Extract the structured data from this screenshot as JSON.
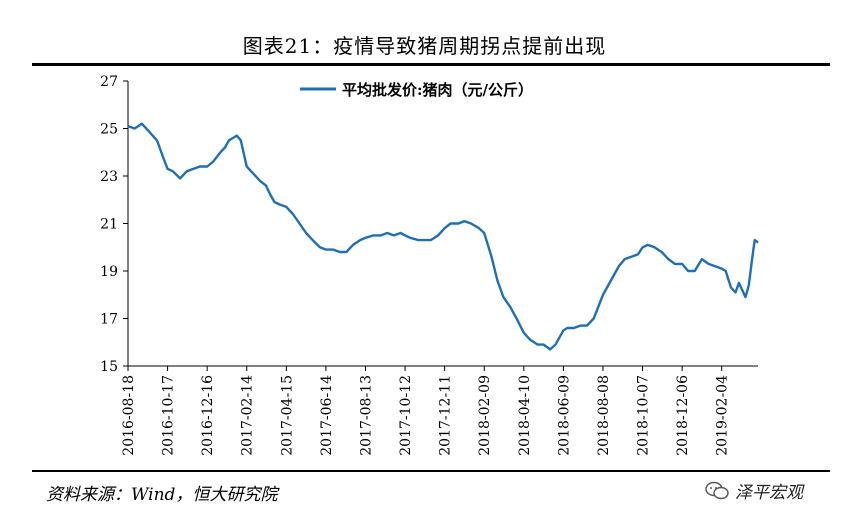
{
  "title": "图表21：疫情导致猪周期拐点提前出现",
  "source": "资料来源：Wind，恒大研究院",
  "watermark": "泽平宏观",
  "chart_data": {
    "type": "line",
    "legend": "平均批发价:猪肉（元/公斤）",
    "ylim": [
      15,
      27
    ],
    "yticks": [
      15,
      17,
      19,
      21,
      23,
      25,
      27
    ],
    "x_start": "2016-08-18",
    "x_end": "2019-03-31",
    "xticks": [
      "2016-08-18",
      "2016-10-17",
      "2016-12-16",
      "2017-02-14",
      "2017-04-15",
      "2017-06-14",
      "2017-08-13",
      "2017-10-12",
      "2017-12-11",
      "2018-02-09",
      "2018-04-10",
      "2018-06-09",
      "2018-08-08",
      "2018-10-07",
      "2018-12-06",
      "2019-02-04"
    ],
    "color": "#1f6fb5",
    "series": [
      {
        "name": "平均批发价:猪肉（元/公斤）",
        "x": [
          "2016-08-18",
          "2016-08-28",
          "2016-09-08",
          "2016-09-18",
          "2016-10-01",
          "2016-10-10",
          "2016-10-17",
          "2016-10-25",
          "2016-11-05",
          "2016-11-15",
          "2016-11-25",
          "2016-12-05",
          "2016-12-16",
          "2016-12-25",
          "2017-01-05",
          "2017-01-12",
          "2017-01-18",
          "2017-01-24",
          "2017-01-30",
          "2017-02-05",
          "2017-02-14",
          "2017-02-24",
          "2017-03-06",
          "2017-03-15",
          "2017-03-22",
          "2017-03-28",
          "2017-04-05",
          "2017-04-15",
          "2017-04-25",
          "2017-05-05",
          "2017-05-15",
          "2017-05-25",
          "2017-06-05",
          "2017-06-14",
          "2017-06-25",
          "2017-07-05",
          "2017-07-15",
          "2017-07-25",
          "2017-08-05",
          "2017-08-13",
          "2017-08-25",
          "2017-09-05",
          "2017-09-15",
          "2017-09-25",
          "2017-10-05",
          "2017-10-12",
          "2017-10-20",
          "2017-11-01",
          "2017-11-10",
          "2017-11-20",
          "2017-12-01",
          "2017-12-11",
          "2017-12-20",
          "2018-01-01",
          "2018-01-10",
          "2018-01-20",
          "2018-02-01",
          "2018-02-09",
          "2018-02-20",
          "2018-03-01",
          "2018-03-10",
          "2018-03-20",
          "2018-03-30",
          "2018-04-10",
          "2018-04-20",
          "2018-05-01",
          "2018-05-10",
          "2018-05-20",
          "2018-05-28",
          "2018-06-05",
          "2018-06-09",
          "2018-06-15",
          "2018-06-25",
          "2018-07-05",
          "2018-07-15",
          "2018-07-25",
          "2018-08-01",
          "2018-08-08",
          "2018-08-20",
          "2018-09-01",
          "2018-09-10",
          "2018-09-20",
          "2018-09-30",
          "2018-10-07",
          "2018-10-15",
          "2018-10-25",
          "2018-11-05",
          "2018-11-15",
          "2018-11-25",
          "2018-12-06",
          "2018-12-15",
          "2018-12-25",
          "2019-01-05",
          "2019-01-15",
          "2019-01-25",
          "2019-02-04",
          "2019-02-10",
          "2019-02-18",
          "2019-02-25",
          "2019-03-02",
          "2019-03-07",
          "2019-03-12",
          "2019-03-17",
          "2019-03-22",
          "2019-03-26",
          "2019-03-31"
        ],
        "values": [
          25.1,
          25.0,
          25.2,
          24.9,
          24.5,
          23.8,
          23.3,
          23.2,
          22.9,
          23.2,
          23.3,
          23.4,
          23.4,
          23.6,
          24.0,
          24.2,
          24.5,
          24.6,
          24.7,
          24.5,
          23.4,
          23.1,
          22.8,
          22.6,
          22.2,
          21.9,
          21.8,
          21.7,
          21.4,
          21.0,
          20.6,
          20.3,
          20.0,
          19.9,
          19.9,
          19.8,
          19.8,
          20.1,
          20.3,
          20.4,
          20.5,
          20.5,
          20.6,
          20.5,
          20.6,
          20.5,
          20.4,
          20.3,
          20.3,
          20.3,
          20.5,
          20.8,
          21.0,
          21.0,
          21.1,
          21.0,
          20.8,
          20.6,
          19.6,
          18.6,
          17.9,
          17.5,
          17.0,
          16.4,
          16.1,
          15.9,
          15.9,
          15.7,
          15.9,
          16.3,
          16.5,
          16.6,
          16.6,
          16.7,
          16.7,
          17.0,
          17.5,
          18.0,
          18.6,
          19.2,
          19.5,
          19.6,
          19.7,
          20.0,
          20.1,
          20.0,
          19.8,
          19.5,
          19.3,
          19.3,
          19.0,
          19.0,
          19.5,
          19.3,
          19.2,
          19.1,
          19.0,
          18.3,
          18.1,
          18.5,
          18.2,
          17.9,
          18.4,
          19.5,
          20.3,
          20.2
        ]
      }
    ]
  }
}
